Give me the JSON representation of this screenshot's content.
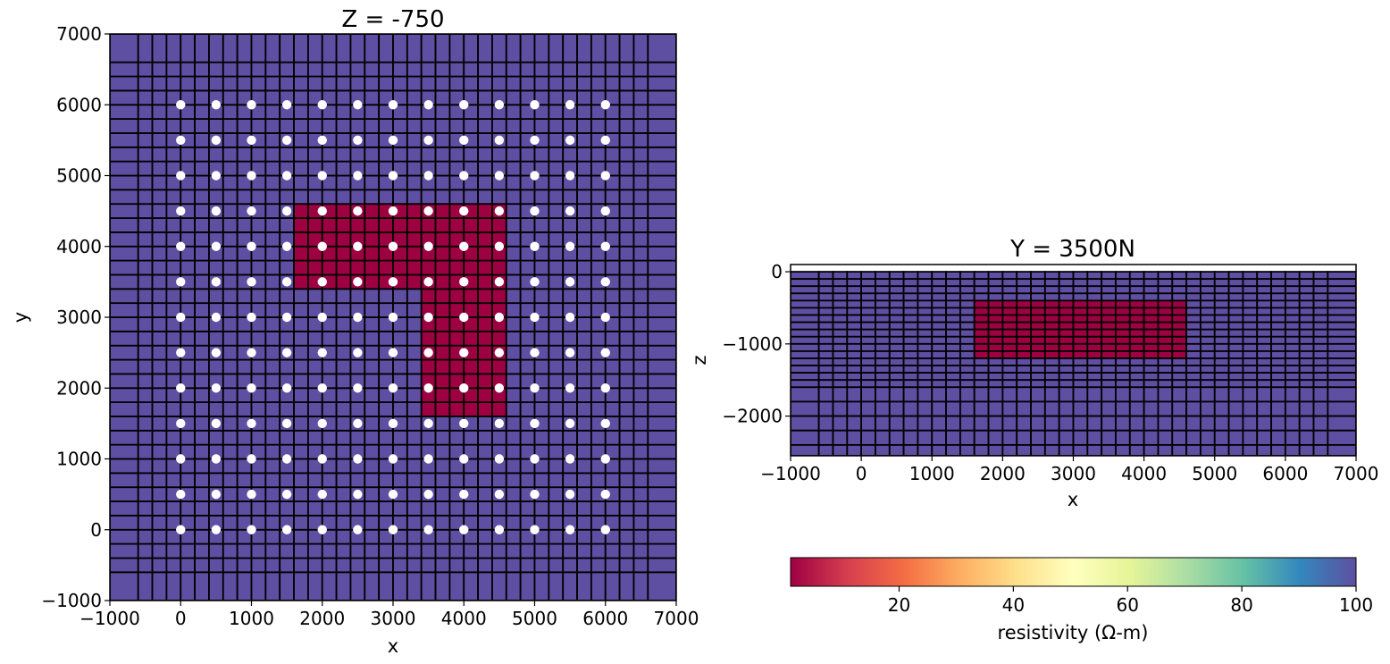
{
  "chart_data": [
    {
      "type": "heatmap",
      "title": "Z = -750",
      "xlabel": "x",
      "ylabel": "y",
      "xlim": [
        -1000,
        7000
      ],
      "ylim": [
        -1000,
        7000
      ],
      "xticks": [
        "−1000",
        "0",
        "1000",
        "2000",
        "3000",
        "4000",
        "5000",
        "6000",
        "7000"
      ],
      "yticks": [
        "−1000",
        "0",
        "1000",
        "2000",
        "3000",
        "4000",
        "5000",
        "6000",
        "7000"
      ],
      "xtick_values": [
        -1000,
        0,
        1000,
        2000,
        3000,
        4000,
        5000,
        6000,
        7000
      ],
      "ytick_values": [
        -1000,
        0,
        1000,
        2000,
        3000,
        4000,
        5000,
        6000,
        7000
      ],
      "mesh_x_edges": [
        -1000,
        -600,
        -400,
        -200,
        0,
        200,
        400,
        600,
        800,
        1000,
        1200,
        1400,
        1600,
        1800,
        2000,
        2200,
        2400,
        2600,
        2800,
        3000,
        3200,
        3400,
        3600,
        3800,
        4000,
        4200,
        4400,
        4600,
        4800,
        5000,
        5200,
        5400,
        5600,
        5800,
        6000,
        6200,
        6400,
        6600,
        7000
      ],
      "mesh_y_edges": [
        -1000,
        -600,
        -400,
        -200,
        0,
        200,
        400,
        600,
        800,
        1000,
        1200,
        1400,
        1600,
        1800,
        2000,
        2200,
        2400,
        2600,
        2800,
        3000,
        3200,
        3400,
        3600,
        3800,
        4000,
        4200,
        4400,
        4600,
        4800,
        5000,
        5200,
        5400,
        5600,
        5800,
        6000,
        6200,
        6400,
        6600,
        7000
      ],
      "background_resistivity": 100,
      "anomaly_resistivity": 1,
      "anomaly_blocks": [
        {
          "x": [
            1600,
            4600
          ],
          "y": [
            3400,
            4600
          ]
        },
        {
          "x": [
            3400,
            4600
          ],
          "y": [
            1600,
            3400
          ]
        }
      ],
      "stations": {
        "x": [
          0,
          500,
          1000,
          1500,
          2000,
          2500,
          3000,
          3500,
          4000,
          4500,
          5000,
          5500,
          6000
        ],
        "y": [
          0,
          500,
          1000,
          1500,
          2000,
          2500,
          3000,
          3500,
          4000,
          4500,
          5000,
          5500,
          6000
        ]
      }
    },
    {
      "type": "heatmap",
      "title": "Y = 3500N",
      "xlabel": "x",
      "ylabel": "z",
      "xlim": [
        -1000,
        7000
      ],
      "ylim": [
        -2550,
        100
      ],
      "xticks": [
        "−1000",
        "0",
        "1000",
        "2000",
        "3000",
        "4000",
        "5000",
        "6000",
        "7000"
      ],
      "yticks": [
        "0",
        "−1000",
        "−2000"
      ],
      "xtick_values": [
        -1000,
        0,
        1000,
        2000,
        3000,
        4000,
        5000,
        6000,
        7000
      ],
      "ytick_values": [
        0,
        -1000,
        -2000
      ],
      "mesh_x_edges": [
        -1000,
        -600,
        -400,
        -200,
        0,
        200,
        400,
        600,
        800,
        1000,
        1200,
        1400,
        1600,
        1800,
        2000,
        2200,
        2400,
        2600,
        2800,
        3000,
        3200,
        3400,
        3600,
        3800,
        4000,
        4200,
        4400,
        4600,
        4800,
        5000,
        5200,
        5400,
        5600,
        5800,
        6000,
        6200,
        6400,
        6600,
        7000
      ],
      "mesh_z_edges": [
        0,
        -100,
        -200,
        -300,
        -400,
        -500,
        -600,
        -700,
        -800,
        -900,
        -1000,
        -1100,
        -1200,
        -1300,
        -1400,
        -1500,
        -1600,
        -1800,
        -2000,
        -2200,
        -2400,
        -2550
      ],
      "background_resistivity": 100,
      "anomaly_resistivity": 1,
      "anomaly_blocks": [
        {
          "x": [
            1600,
            4600
          ],
          "z": [
            -1200,
            -400
          ]
        }
      ]
    }
  ],
  "colorbar": {
    "label": "resistivity (Ω-m)",
    "range": [
      1,
      100
    ],
    "tick_values": [
      20,
      40,
      60,
      80,
      100
    ],
    "tick_labels": [
      "20",
      "40",
      "60",
      "80",
      "100"
    ],
    "colormap": "Spectral",
    "stops": [
      "#9e0142",
      "#d53e4f",
      "#f46d43",
      "#fdae61",
      "#fee08b",
      "#ffffbf",
      "#e6f598",
      "#abdda4",
      "#66c2a5",
      "#3288bd",
      "#5e4fa2"
    ]
  },
  "colors": {
    "background_cell": "#5e4fa2",
    "anomaly_cell": "#9e0142",
    "station": "#ffffff",
    "grid": "#000000"
  }
}
